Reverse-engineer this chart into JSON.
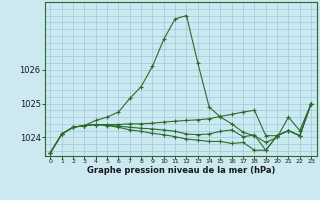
{
  "title": "Graphe pression niveau de la mer (hPa)",
  "background_color": "#cce8f0",
  "grid_color": "#99ccd9",
  "line_color": "#2d6b2d",
  "xlim": [
    -0.5,
    23.5
  ],
  "ylim": [
    1023.45,
    1028.0
  ],
  "yticks": [
    1024,
    1025,
    1026
  ],
  "xticks": [
    0,
    1,
    2,
    3,
    4,
    5,
    6,
    7,
    8,
    9,
    10,
    11,
    12,
    13,
    14,
    15,
    16,
    17,
    18,
    19,
    20,
    21,
    22,
    23
  ],
  "series": [
    [
      1023.55,
      1024.1,
      1024.3,
      1024.35,
      1024.5,
      1024.6,
      1024.75,
      1025.15,
      1025.5,
      1026.1,
      1026.9,
      1027.5,
      1027.6,
      1026.2,
      1024.9,
      1024.6,
      1024.4,
      1024.15,
      1024.05,
      1023.85,
      1024.0,
      1024.6,
      1024.2,
      1025.0
    ],
    [
      1023.55,
      1024.1,
      1024.3,
      1024.35,
      1024.38,
      1024.38,
      1024.38,
      1024.4,
      1024.4,
      1024.42,
      1024.45,
      1024.48,
      1024.5,
      1024.52,
      1024.55,
      1024.62,
      1024.68,
      1024.75,
      1024.8,
      1024.05,
      1024.05,
      1024.2,
      1024.05,
      1025.0
    ],
    [
      1023.55,
      1024.1,
      1024.3,
      1024.35,
      1024.38,
      1024.35,
      1024.3,
      1024.22,
      1024.18,
      1024.12,
      1024.08,
      1024.02,
      1023.95,
      1023.92,
      1023.88,
      1023.88,
      1023.82,
      1023.85,
      1023.62,
      1023.62,
      1024.05,
      1024.2,
      1024.05,
      1025.0
    ],
    [
      1023.55,
      1024.1,
      1024.3,
      1024.35,
      1024.38,
      1024.36,
      1024.33,
      1024.3,
      1024.27,
      1024.25,
      1024.22,
      1024.18,
      1024.1,
      1024.08,
      1024.1,
      1024.18,
      1024.22,
      1024.02,
      1024.07,
      1023.62,
      1024.05,
      1024.2,
      1024.05,
      1025.0
    ]
  ]
}
